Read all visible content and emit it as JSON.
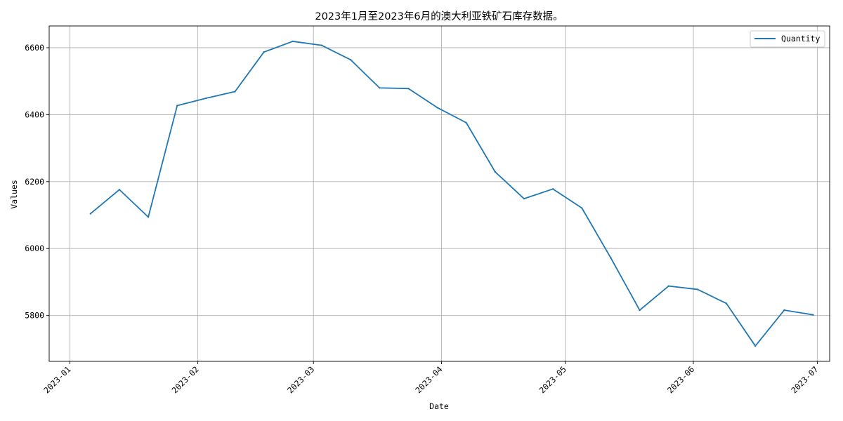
{
  "chart_data": {
    "type": "line",
    "title": "2023年1月至2023年6月的澳大利亚铁矿石库存数据。",
    "xlabel": "Date",
    "ylabel": "Values",
    "grid": true,
    "legend_position": "top-right",
    "color": "#1f77b4",
    "x_ticks": [
      "2023-01",
      "2023-02",
      "2023-03",
      "2023-04",
      "2023-05",
      "2023-06",
      "2023-07"
    ],
    "y_ticks": [
      5800,
      6000,
      6200,
      6400,
      6600
    ],
    "xlim": [
      "2022-12-27",
      "2023-07-04"
    ],
    "ylim": [
      5663,
      6665
    ],
    "series": [
      {
        "name": "Quantity",
        "points": [
          {
            "x": "2023-01-06",
            "y": 6104
          },
          {
            "x": "2023-01-13",
            "y": 6176
          },
          {
            "x": "2023-01-20",
            "y": 6094
          },
          {
            "x": "2023-01-27",
            "y": 6427
          },
          {
            "x": "2023-02-03",
            "y": 6449
          },
          {
            "x": "2023-02-10",
            "y": 6469
          },
          {
            "x": "2023-02-17",
            "y": 6587
          },
          {
            "x": "2023-02-24",
            "y": 6619
          },
          {
            "x": "2023-03-03",
            "y": 6607
          },
          {
            "x": "2023-03-10",
            "y": 6564
          },
          {
            "x": "2023-03-17",
            "y": 6480
          },
          {
            "x": "2023-03-24",
            "y": 6478
          },
          {
            "x": "2023-03-31",
            "y": 6421
          },
          {
            "x": "2023-04-07",
            "y": 6376
          },
          {
            "x": "2023-04-14",
            "y": 6229
          },
          {
            "x": "2023-04-21",
            "y": 6149
          },
          {
            "x": "2023-04-28",
            "y": 6178
          },
          {
            "x": "2023-05-05",
            "y": 6121
          },
          {
            "x": "2023-05-12",
            "y": 5972
          },
          {
            "x": "2023-05-19",
            "y": 5816
          },
          {
            "x": "2023-05-26",
            "y": 5888
          },
          {
            "x": "2023-06-02",
            "y": 5878
          },
          {
            "x": "2023-06-09",
            "y": 5836
          },
          {
            "x": "2023-06-16",
            "y": 5709
          },
          {
            "x": "2023-06-23",
            "y": 5816
          },
          {
            "x": "2023-06-30",
            "y": 5802
          }
        ]
      }
    ]
  }
}
